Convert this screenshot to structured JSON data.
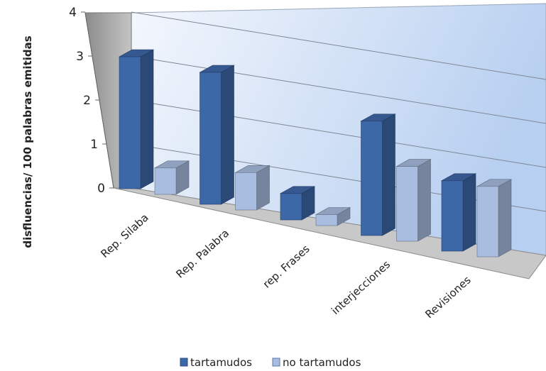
{
  "chart_data": {
    "type": "bar",
    "style": "3d-clustered-column",
    "title": "",
    "xlabel": "",
    "ylabel": "disfluencias/ 100 palabras emitidas",
    "ylim": [
      0,
      4
    ],
    "yticks": [
      "0",
      "1",
      "2",
      "3",
      "4"
    ],
    "categories": [
      "Rep. Silaba",
      "Rep. Palabra",
      "rep. Frases",
      "interjecciones",
      "Revisiones"
    ],
    "series": [
      {
        "name": "tartamudos",
        "values": [
          3.0,
          3.0,
          0.6,
          2.6,
          1.6
        ],
        "color": "#3d68a8"
      },
      {
        "name": "no tartamudos",
        "values": [
          0.6,
          0.85,
          0.25,
          1.7,
          1.6
        ],
        "color": "#a8bde0"
      }
    ],
    "legend_position": "bottom",
    "grid": true,
    "background_gradient": [
      "#f4f7fd",
      "#b7cff0"
    ]
  }
}
